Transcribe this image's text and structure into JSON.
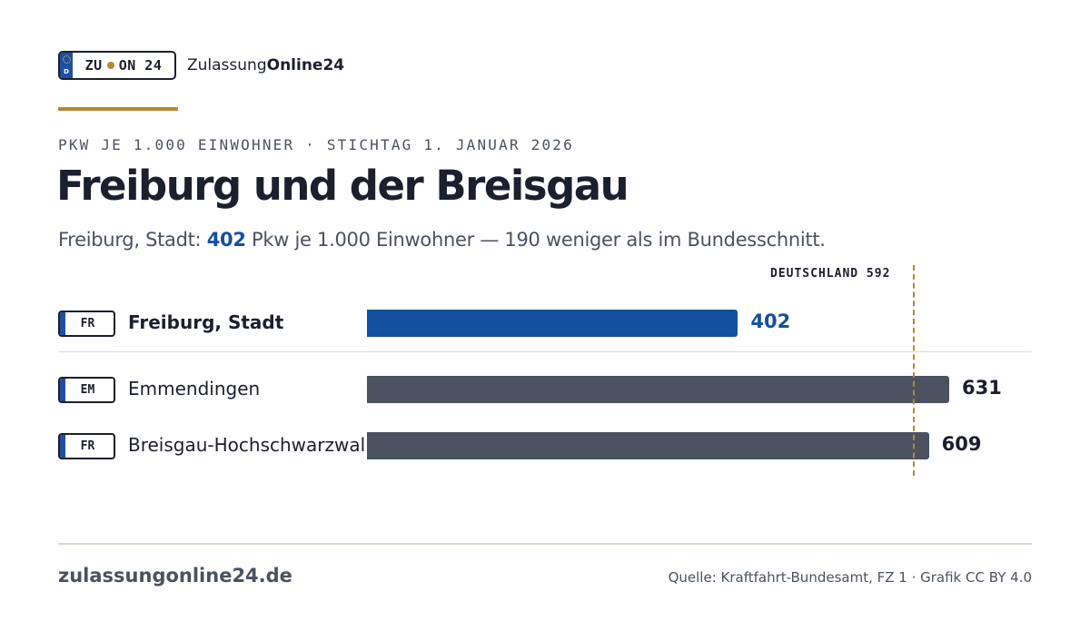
{
  "brand": {
    "plate_left": "ZU",
    "plate_right": "ON 24",
    "plate_country": "D",
    "name_regular": "Zulassung",
    "name_bold": "Online24"
  },
  "header": {
    "kicker": "PKW JE 1.000 EINWOHNER · STICHTAG 1. JANUAR 2026",
    "title": "Freiburg und der Breisgau",
    "subtitle_prefix": "Freiburg, Stadt: ",
    "subtitle_value": "402",
    "subtitle_suffix": " Pkw je 1.000 Einwohner — 190 weniger als im Bundesschnitt."
  },
  "chart_data": {
    "type": "bar",
    "orientation": "horizontal",
    "categories": [
      "Freiburg, Stadt",
      "Emmendingen",
      "Breisgau-Hochschwarzwald"
    ],
    "plates": [
      "FR",
      "EM",
      "FR"
    ],
    "values": [
      402,
      631,
      609
    ],
    "value_labels": [
      "402",
      "631",
      "609"
    ],
    "highlight_index": 0,
    "reference": {
      "label": "DEUTSCHLAND 592",
      "value": 592
    },
    "xlim": [
      0,
      640
    ],
    "colors": {
      "highlight": "#1350a0",
      "default": "#4a5261",
      "reference": "#b8872f"
    }
  },
  "footer": {
    "site": "zulassungonline24.de",
    "source": "Quelle: Kraftfahrt-Bundesamt, FZ 1 · Grafik CC BY 4.0"
  }
}
